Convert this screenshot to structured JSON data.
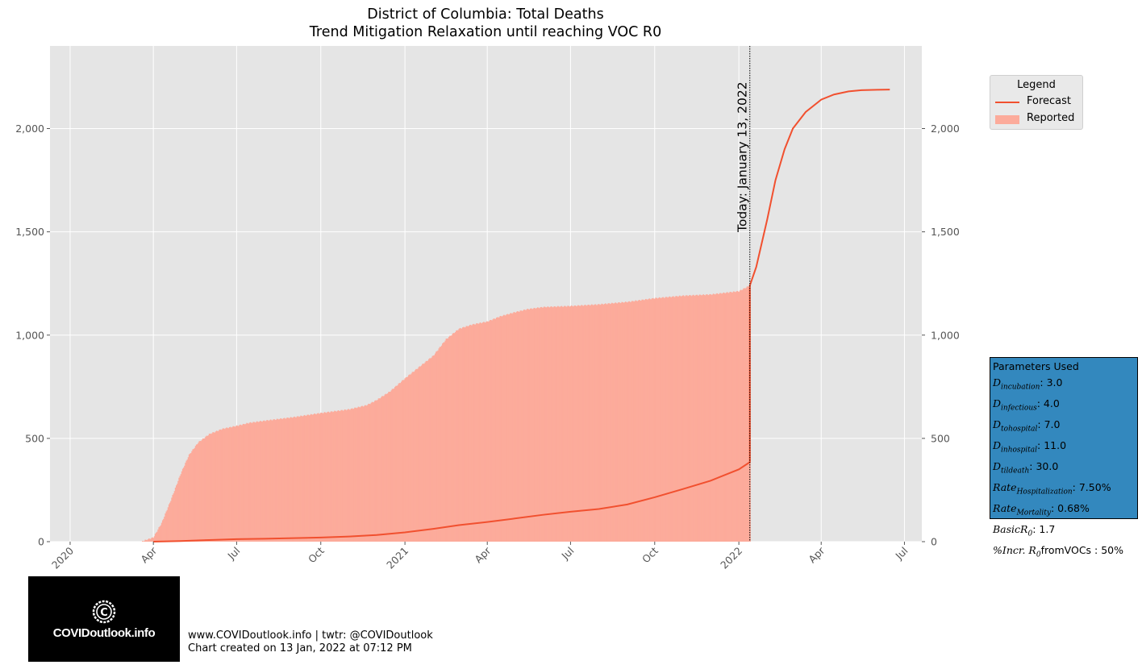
{
  "chart_data": {
    "type": "area",
    "title": "District of Columbia: Total Deaths",
    "subtitle": "Trend Mitigation Relaxation until reaching VOC R0",
    "x_ticks": [
      "2020",
      "Apr",
      "Jul",
      "Oct",
      "2021",
      "Apr",
      "Jul",
      "Oct",
      "2022",
      "Apr",
      "Jul"
    ],
    "x_tick_dates": [
      "2020-01-01",
      "2020-04-01",
      "2020-07-01",
      "2020-10-01",
      "2021-01-01",
      "2021-04-01",
      "2021-07-01",
      "2021-10-01",
      "2022-01-01",
      "2022-04-01",
      "2022-07-01"
    ],
    "y_ticks": [
      "0",
      "500",
      "1,000",
      "1,500",
      "2,000"
    ],
    "y_tick_values": [
      0,
      500,
      1000,
      1500,
      2000
    ],
    "ylim": [
      0,
      2400
    ],
    "xlim": [
      "2019-12-10",
      "2022-07-20"
    ],
    "grid": true,
    "legend_placement": "outside-right-top",
    "today_label": "Today: January 13, 2022",
    "today_date": "2022-01-13",
    "series": [
      {
        "name": "Reported",
        "kind": "area",
        "color": "#fcab9b",
        "x": [
          "2020-03-20",
          "2020-04-01",
          "2020-04-10",
          "2020-04-20",
          "2020-05-01",
          "2020-05-10",
          "2020-05-20",
          "2020-06-01",
          "2020-06-15",
          "2020-07-01",
          "2020-07-15",
          "2020-08-01",
          "2020-09-01",
          "2020-10-01",
          "2020-11-01",
          "2020-11-20",
          "2020-12-01",
          "2020-12-15",
          "2021-01-01",
          "2021-01-15",
          "2021-02-01",
          "2021-02-15",
          "2021-03-01",
          "2021-03-15",
          "2021-04-01",
          "2021-04-15",
          "2021-05-01",
          "2021-05-15",
          "2021-06-01",
          "2021-07-01",
          "2021-08-01",
          "2021-09-01",
          "2021-10-01",
          "2021-11-01",
          "2021-12-01",
          "2022-01-01",
          "2022-01-13"
        ],
        "y": [
          2,
          20,
          90,
          200,
          330,
          420,
          480,
          520,
          545,
          560,
          575,
          585,
          602,
          622,
          640,
          660,
          685,
          725,
          790,
          840,
          900,
          980,
          1030,
          1050,
          1065,
          1090,
          1110,
          1125,
          1135,
          1140,
          1148,
          1160,
          1178,
          1190,
          1196,
          1212,
          1240
        ]
      },
      {
        "name": "Forecast",
        "kind": "line",
        "color": "#f1502f",
        "x": [
          "2020-04-01",
          "2020-05-01",
          "2020-06-01",
          "2020-07-01",
          "2020-08-01",
          "2020-09-01",
          "2020-10-01",
          "2020-11-01",
          "2020-12-01",
          "2021-01-01",
          "2021-02-01",
          "2021-03-01",
          "2021-04-01",
          "2021-05-01",
          "2021-06-01",
          "2021-07-01",
          "2021-08-01",
          "2021-09-01",
          "2021-10-01",
          "2021-11-01",
          "2021-12-01",
          "2022-01-01",
          "2022-01-13",
          "2022-01-13",
          "2022-01-20",
          "2022-02-01",
          "2022-02-10",
          "2022-02-20",
          "2022-03-01",
          "2022-03-15",
          "2022-04-01",
          "2022-04-15",
          "2022-05-01",
          "2022-05-15",
          "2022-06-01",
          "2022-06-15"
        ],
        "y": [
          0,
          3,
          8,
          12,
          14,
          17,
          20,
          25,
          32,
          45,
          62,
          80,
          95,
          112,
          130,
          145,
          158,
          180,
          215,
          255,
          295,
          350,
          385,
          1240,
          1330,
          1560,
          1750,
          1900,
          2000,
          2080,
          2140,
          2165,
          2180,
          2186,
          2188,
          2189
        ]
      }
    ]
  },
  "legend": {
    "title": "Legend",
    "items": [
      {
        "label": "Forecast",
        "color": "#f1502f"
      },
      {
        "label": "Reported",
        "color": "#fcab9b"
      }
    ]
  },
  "params": {
    "title": "Parameters Used",
    "rows": [
      {
        "base": "D",
        "sub": "incubation",
        "value": ": 3.0"
      },
      {
        "base": "D",
        "sub": "infectious",
        "value": ": 4.0"
      },
      {
        "base": "D",
        "sub": "tohospital",
        "value": ": 7.0"
      },
      {
        "base": "D",
        "sub": "inhospital",
        "value": ": 11.0"
      },
      {
        "base": "D",
        "sub": "tildeath",
        "value": ": 30.0"
      },
      {
        "base": "Rate",
        "sub": "Hospitalization",
        "value": ": 7.50%"
      },
      {
        "base": "Rate",
        "sub": "Mortality",
        "value": ": 0.68%"
      },
      {
        "base": "BasicR",
        "sub": "0",
        "value": ": 1.7"
      },
      {
        "base": "%Incr. R",
        "sub": "0",
        "value": "fromVOCs : 50%"
      }
    ]
  },
  "logo": {
    "text": "COVIDoutlook.info"
  },
  "footer": {
    "line1": "www.COVIDoutlook.info | twtr: @COVIDoutlook",
    "line2": "Chart created on 13 Jan, 2022 at 07:12 PM"
  }
}
